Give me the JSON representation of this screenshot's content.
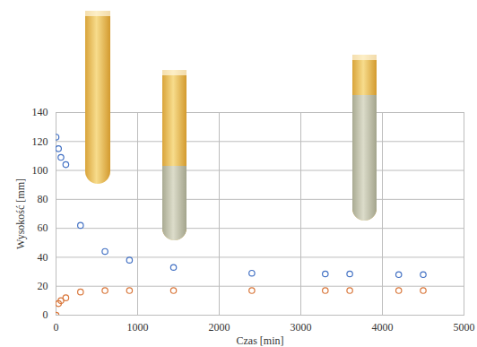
{
  "chart_data": {
    "type": "scatter",
    "x_label": "Czas [min]",
    "y_label": "Wysokość [mm]",
    "x": [
      0,
      30,
      60,
      120,
      300,
      600,
      900,
      1440,
      2400,
      3300,
      3600,
      4200,
      4500
    ],
    "series": [
      {
        "color": "#4472c4",
        "marker": "circle",
        "values": [
          123,
          115,
          109,
          104,
          62,
          44,
          38,
          33,
          29,
          28.5,
          28.5,
          28,
          28
        ]
      },
      {
        "color": "#d9773b",
        "marker": "circle",
        "values": [
          0,
          8,
          10,
          12,
          16,
          17,
          17,
          17,
          17,
          17,
          17,
          17,
          17
        ]
      }
    ],
    "xlim": [
      0,
      5000
    ],
    "xticks": [
      0,
      1000,
      2000,
      3000,
      4000,
      5000
    ],
    "ylim": [
      0,
      140
    ],
    "yticks": [
      0,
      20,
      40,
      60,
      80,
      100,
      120,
      140
    ],
    "grid": true
  }
}
